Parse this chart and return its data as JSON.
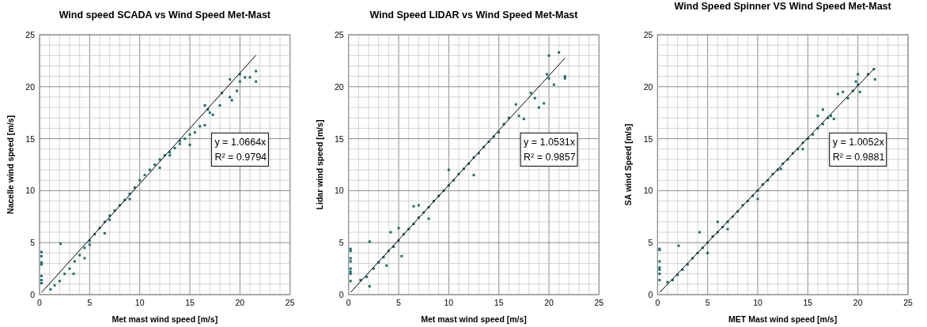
{
  "chart_data": [
    {
      "type": "scatter",
      "title": "Wind speed SCADA vs Wind Speed Met-Mast",
      "xlabel": "Met mast wind speed [m/s]",
      "ylabel": "Nacelle wind speed [m/s]",
      "annotations": [
        "y = 1.0664x",
        "R² = 0.9794"
      ],
      "xlim": [
        0,
        25
      ],
      "ylim": [
        0,
        25
      ],
      "xticks": [
        0,
        {
          "value": 1,
          "label": null
        },
        {
          "value": 2,
          "label": null
        },
        {
          "value": 3,
          "label": null
        },
        {
          "value": 4,
          "label": null
        },
        5,
        {
          "value": 6,
          "label": null
        },
        {
          "value": 7,
          "label": null
        },
        {
          "value": 8,
          "label": null
        },
        {
          "value": 9,
          "label": null
        },
        10,
        {
          "value": 11,
          "label": null
        },
        {
          "value": 12,
          "label": null
        },
        {
          "value": 13,
          "label": null
        },
        {
          "value": 14,
          "label": null
        },
        15,
        {
          "value": 16,
          "label": null
        },
        {
          "value": 17,
          "label": null
        },
        {
          "value": 18,
          "label": null
        },
        {
          "value": 19,
          "label": null
        },
        20,
        {
          "value": 21,
          "label": null
        },
        {
          "value": 22,
          "label": null
        },
        {
          "value": 23,
          "label": null
        },
        {
          "value": 24,
          "label": null
        },
        25
      ],
      "yticks": [
        0,
        {
          "value": 1,
          "label": null
        },
        {
          "value": 2,
          "label": null
        },
        {
          "value": 3,
          "label": null
        },
        {
          "value": 4,
          "label": null
        },
        5,
        {
          "value": 6,
          "label": null
        },
        {
          "value": 7,
          "label": null
        },
        {
          "value": 8,
          "label": null
        },
        {
          "value": 9,
          "label": null
        },
        10,
        {
          "value": 11,
          "label": null
        },
        {
          "value": 12,
          "label": null
        },
        {
          "value": 13,
          "label": null
        },
        {
          "value": 14,
          "label": null
        },
        15,
        {
          "value": 16,
          "label": null
        },
        {
          "value": 17,
          "label": null
        },
        {
          "value": 18,
          "label": null
        },
        {
          "value": 19,
          "label": null
        },
        20,
        {
          "value": 21,
          "label": null
        },
        {
          "value": 22,
          "label": null
        },
        {
          "value": 23,
          "label": null
        },
        {
          "value": 24,
          "label": null
        },
        25
      ],
      "grid": true,
      "marker": "square",
      "series": [
        {
          "type": "scatter",
          "color": "#17706b",
          "x": [
            0.2,
            0.2,
            0.2,
            0.2,
            0.2,
            0.2,
            0.2,
            2.1,
            1.1,
            1.5,
            2,
            2.5,
            3,
            3.5,
            4,
            4.5,
            5,
            5.5,
            6,
            6.5,
            7,
            7.5,
            8,
            8.5,
            9,
            9.5,
            10,
            10.5,
            11,
            11.5,
            12,
            12.5,
            13,
            13.5,
            14,
            14.5,
            15,
            15.5,
            16,
            16.5,
            17,
            17.3,
            16.5,
            18,
            18.2,
            19,
            19.2,
            19.7,
            20,
            20,
            20.5,
            21,
            21.6,
            21.6,
            19,
            15,
            13,
            12,
            9,
            7,
            5,
            4.5,
            3.4,
            6.5,
            14,
            16.8
          ],
          "values": [
            4.1,
            3.7,
            3.1,
            2.9,
            1.8,
            1.4,
            1.1,
            4.9,
            0.5,
            0.9,
            1.3,
            2,
            2.5,
            3.2,
            3.8,
            4.5,
            5.2,
            5.8,
            6.4,
            7,
            7.6,
            8.1,
            8.6,
            9.1,
            9.7,
            10.3,
            11,
            11.5,
            12,
            12.5,
            13,
            13.4,
            13.7,
            14.1,
            14.5,
            15,
            15.4,
            15.6,
            16.2,
            16.3,
            17.5,
            17.3,
            18.2,
            18.2,
            19.4,
            19,
            18.7,
            19.6,
            20.5,
            21.2,
            20.9,
            20.9,
            21.5,
            20.5,
            20.7,
            14.4,
            13.4,
            12.2,
            9.2,
            7.2,
            4.8,
            3.5,
            2,
            5.9,
            14.8,
            17.8
          ]
        },
        {
          "type": "line",
          "color": "#000000",
          "marker": "none",
          "x": [
            0.2,
            21.6
          ],
          "values": [
            0.21,
            23.03
          ]
        }
      ]
    },
    {
      "type": "scatter",
      "title": "Wind Speed LIDAR vs Wind Speed Met-Mast",
      "xlabel": "Met mast wind speed [m/s]",
      "ylabel": "Lidar wind speed [m/s]",
      "annotations": [
        "y = 1.0531x",
        "R² = 0.9857"
      ],
      "xlim": [
        0,
        25
      ],
      "ylim": [
        0,
        25
      ],
      "xticks": [
        0,
        {
          "value": 1,
          "label": null
        },
        {
          "value": 2,
          "label": null
        },
        {
          "value": 3,
          "label": null
        },
        {
          "value": 4,
          "label": null
        },
        5,
        {
          "value": 6,
          "label": null
        },
        {
          "value": 7,
          "label": null
        },
        {
          "value": 8,
          "label": null
        },
        {
          "value": 9,
          "label": null
        },
        10,
        {
          "value": 11,
          "label": null
        },
        {
          "value": 12,
          "label": null
        },
        {
          "value": 13,
          "label": null
        },
        {
          "value": 14,
          "label": null
        },
        15,
        {
          "value": 16,
          "label": null
        },
        {
          "value": 17,
          "label": null
        },
        {
          "value": 18,
          "label": null
        },
        {
          "value": 19,
          "label": null
        },
        20,
        {
          "value": 21,
          "label": null
        },
        {
          "value": 22,
          "label": null
        },
        {
          "value": 23,
          "label": null
        },
        {
          "value": 24,
          "label": null
        },
        25
      ],
      "yticks": [
        0,
        {
          "value": 1,
          "label": null
        },
        {
          "value": 2,
          "label": null
        },
        {
          "value": 3,
          "label": null
        },
        {
          "value": 4,
          "label": null
        },
        5,
        {
          "value": 6,
          "label": null
        },
        {
          "value": 7,
          "label": null
        },
        {
          "value": 8,
          "label": null
        },
        {
          "value": 9,
          "label": null
        },
        10,
        {
          "value": 11,
          "label": null
        },
        {
          "value": 12,
          "label": null
        },
        {
          "value": 13,
          "label": null
        },
        {
          "value": 14,
          "label": null
        },
        15,
        {
          "value": 16,
          "label": null
        },
        {
          "value": 17,
          "label": null
        },
        {
          "value": 18,
          "label": null
        },
        {
          "value": 19,
          "label": null
        },
        20,
        {
          "value": 21,
          "label": null
        },
        {
          "value": 22,
          "label": null
        },
        {
          "value": 23,
          "label": null
        },
        {
          "value": 24,
          "label": null
        },
        25
      ],
      "grid": true,
      "marker": "square",
      "series": [
        {
          "type": "scatter",
          "color": "#17706b",
          "x": [
            0.2,
            0.2,
            0.2,
            0.2,
            0.2,
            0.2,
            0.2,
            0.2,
            2.1,
            2.1,
            1.2,
            1.8,
            2.5,
            3,
            3.5,
            4,
            4.5,
            5,
            5.5,
            6,
            6.5,
            7,
            7.5,
            8,
            8.5,
            9,
            9.5,
            10,
            10.5,
            11,
            11.5,
            12,
            12.5,
            13,
            13.5,
            14,
            14.5,
            15,
            15.5,
            16,
            16.7,
            17,
            17.5,
            18.2,
            18.6,
            19,
            19.5,
            19.8,
            20,
            20,
            20.5,
            21,
            21.6,
            21.6,
            4.2,
            5,
            6.5,
            7,
            8,
            5.3,
            3.8,
            10,
            12.5
          ],
          "values": [
            4.4,
            4.2,
            3.5,
            3.2,
            2.5,
            2.2,
            2,
            1.3,
            5.1,
            0.8,
            1.4,
            1.7,
            2.5,
            3.1,
            3.6,
            4.2,
            4.6,
            5.2,
            5.8,
            6.3,
            6.8,
            7.4,
            7.9,
            8.4,
            9,
            9.5,
            10,
            10.5,
            11,
            11.6,
            12.1,
            12.6,
            13.2,
            13.6,
            14.2,
            14.7,
            15.2,
            15.6,
            16.4,
            17,
            18.3,
            17.2,
            16.9,
            19.4,
            18.9,
            18,
            18.4,
            21.2,
            20.8,
            23,
            20.2,
            23.3,
            21,
            20.8,
            6,
            6.4,
            8.5,
            8.6,
            7.3,
            3.7,
            2.8,
            12,
            11.5
          ]
        },
        {
          "type": "line",
          "color": "#000000",
          "marker": "none",
          "x": [
            0.2,
            21.6
          ],
          "values": [
            0.21,
            22.75
          ]
        }
      ]
    },
    {
      "type": "scatter",
      "title": "Wind Speed Spinner VS Wind Speed Met-Mast",
      "xlabel": "MET Mast wind speed [m/s]",
      "ylabel": "SA wind Speed [m/s]",
      "annotations": [
        "y = 1.0052x",
        "R² = 0.9881"
      ],
      "xlim": [
        0,
        25
      ],
      "ylim": [
        0,
        25
      ],
      "xticks": [
        0,
        {
          "value": 1,
          "label": null
        },
        {
          "value": 2,
          "label": null
        },
        {
          "value": 3,
          "label": null
        },
        {
          "value": 4,
          "label": null
        },
        5,
        {
          "value": 6,
          "label": null
        },
        {
          "value": 7,
          "label": null
        },
        {
          "value": 8,
          "label": null
        },
        {
          "value": 9,
          "label": null
        },
        10,
        {
          "value": 11,
          "label": null
        },
        {
          "value": 12,
          "label": null
        },
        {
          "value": 13,
          "label": null
        },
        {
          "value": 14,
          "label": null
        },
        15,
        {
          "value": 16,
          "label": null
        },
        {
          "value": 17,
          "label": null
        },
        {
          "value": 18,
          "label": null
        },
        {
          "value": 19,
          "label": null
        },
        20,
        {
          "value": 21,
          "label": null
        },
        {
          "value": 22,
          "label": null
        },
        {
          "value": 23,
          "label": null
        },
        {
          "value": 24,
          "label": null
        },
        25
      ],
      "yticks": [
        0,
        {
          "value": 1,
          "label": null
        },
        {
          "value": 2,
          "label": null
        },
        {
          "value": 3,
          "label": null
        },
        {
          "value": 4,
          "label": null
        },
        5,
        {
          "value": 6,
          "label": null
        },
        {
          "value": 7,
          "label": null
        },
        {
          "value": 8,
          "label": null
        },
        {
          "value": 9,
          "label": null
        },
        10,
        {
          "value": 11,
          "label": null
        },
        {
          "value": 12,
          "label": null
        },
        {
          "value": 13,
          "label": null
        },
        {
          "value": 14,
          "label": null
        },
        15,
        {
          "value": 16,
          "label": null
        },
        {
          "value": 17,
          "label": null
        },
        {
          "value": 18,
          "label": null
        },
        {
          "value": 19,
          "label": null
        },
        20,
        {
          "value": 21,
          "label": null
        },
        {
          "value": 22,
          "label": null
        },
        {
          "value": 23,
          "label": null
        },
        {
          "value": 24,
          "label": null
        },
        25
      ],
      "grid": true,
      "marker": "square",
      "series": [
        {
          "type": "scatter",
          "color": "#17706b",
          "x": [
            0.2,
            0.2,
            0.2,
            0.2,
            0.2,
            0.2,
            0.2,
            2.1,
            1,
            1.5,
            2,
            2.5,
            3,
            3.5,
            4,
            4.5,
            5,
            5.5,
            6,
            6.5,
            7,
            7.5,
            8,
            8.5,
            9,
            9.5,
            10,
            10.5,
            11,
            11.5,
            12,
            12.5,
            13,
            13.5,
            14,
            14.5,
            15,
            15.5,
            16,
            16.5,
            17,
            17.3,
            17.6,
            16.5,
            18,
            18.5,
            19,
            19.5,
            19.8,
            20,
            20,
            20.2,
            21,
            21.6,
            21.7,
            4.2,
            6,
            5,
            12.3,
            14.5,
            10,
            7,
            16
          ],
          "values": [
            4.4,
            4.3,
            3.2,
            2.6,
            2.4,
            2,
            1.4,
            4.7,
            1.2,
            1.4,
            1.9,
            2.4,
            2.9,
            3.5,
            4,
            4.5,
            5,
            5.6,
            6,
            6.5,
            7,
            7.5,
            8,
            8.6,
            9,
            9.5,
            10,
            10.6,
            11,
            11.6,
            12,
            12.6,
            13,
            13.6,
            14,
            14.6,
            15,
            15.4,
            16,
            16.4,
            17,
            17.2,
            16.9,
            17.8,
            19.3,
            19.5,
            18.9,
            19.6,
            20.5,
            21.2,
            20.2,
            19.5,
            21.2,
            21.7,
            20.7,
            6,
            7,
            4,
            12.1,
            14,
            9.2,
            6.3,
            17.2
          ]
        },
        {
          "type": "line",
          "color": "#000000",
          "marker": "none",
          "x": [
            0.2,
            21.6
          ],
          "values": [
            0.2,
            21.71
          ]
        }
      ]
    }
  ]
}
